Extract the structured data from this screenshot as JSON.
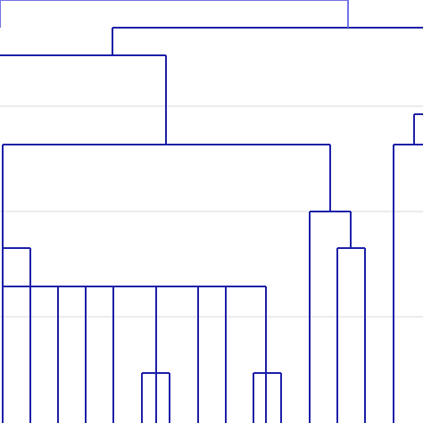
{
  "diagram": {
    "type": "dendrogram",
    "link_color": "#1c1fa8",
    "top_link_color": "#6f73e6",
    "grid_color": "#d9d9d9",
    "leaf_count": 16,
    "x_labels": [],
    "y_labels": []
  }
}
